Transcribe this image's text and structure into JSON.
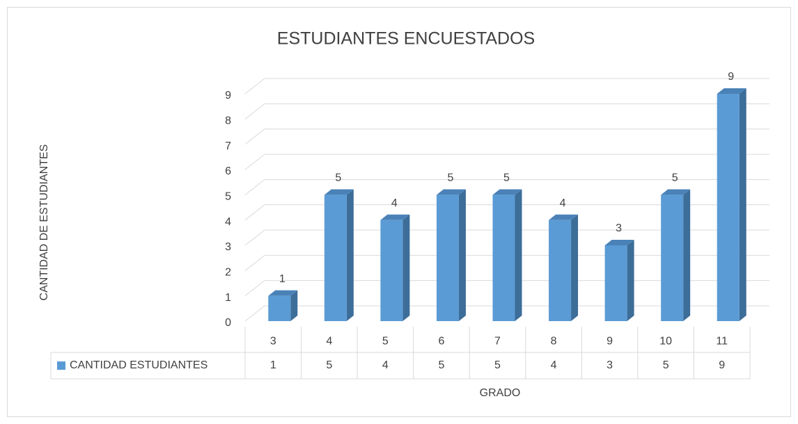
{
  "chart_data": {
    "type": "bar3d",
    "title": "ESTUDIANTES ENCUESTADOS",
    "y_label": "CANTIDAD DE ESTUDIANTES",
    "x_label": "GRADO",
    "categories": [
      "3",
      "4",
      "5",
      "6",
      "7",
      "8",
      "9",
      "10",
      "11"
    ],
    "series": [
      {
        "name": "CANTIDAD ESTUDIANTES",
        "color": "#5b9bd5",
        "values": [
          1,
          5,
          4,
          5,
          5,
          4,
          3,
          5,
          9
        ]
      }
    ],
    "ylim": [
      0,
      9
    ],
    "yticks": [
      0,
      1,
      2,
      3,
      4,
      5,
      6,
      7,
      8,
      9
    ],
    "grid": true
  }
}
